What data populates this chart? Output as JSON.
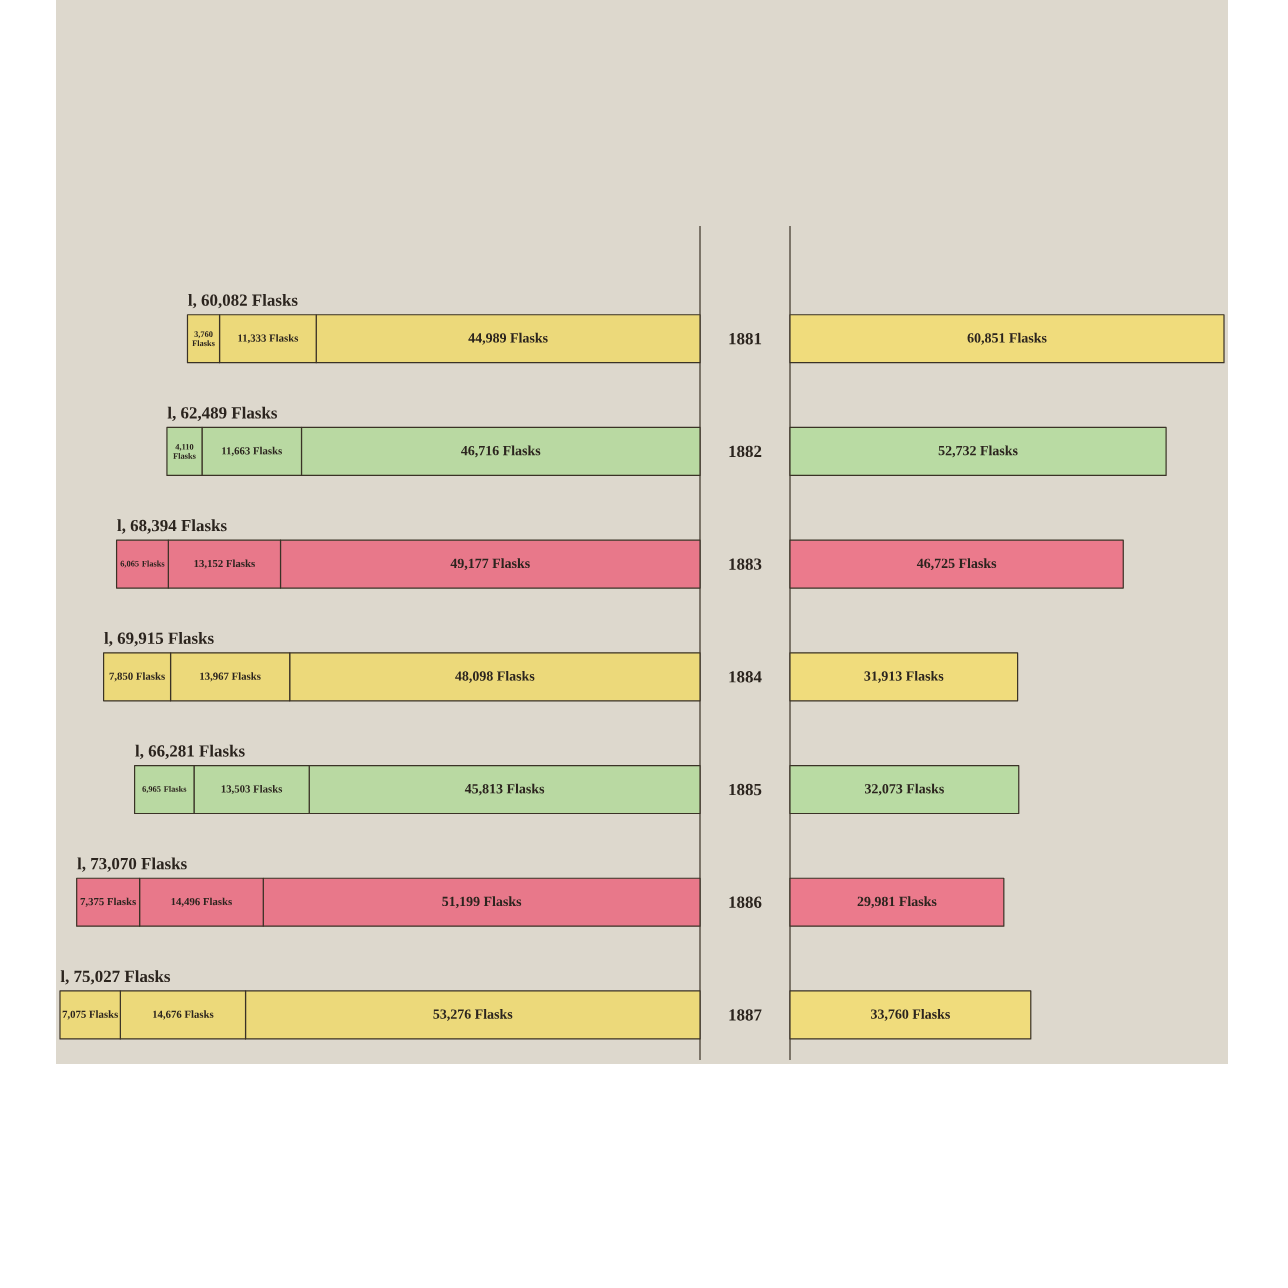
{
  "chart_data": [
    {
      "type": "bar",
      "orientation": "horizontal",
      "stacked": true,
      "categories": [
        "1881",
        "1882",
        "1883",
        "1884",
        "1885",
        "1886",
        "1887"
      ],
      "tick_labels": false,
      "xlim": [
        75027,
        0
      ],
      "series": [
        {
          "colors": [
            "#ecd97a",
            "#b9d9a2",
            "#e8788a",
            "#ecd97a",
            "#b9d9a2",
            "#e8788a",
            "#ecd97a"
          ],
          "values": [
            44989,
            46716,
            49177,
            48098,
            45813,
            51199,
            53276
          ],
          "value_labels": [
            "44,989 Flasks",
            "46,716 Flasks",
            "49,177 Flasks",
            "48,098 Flasks",
            "45,813 Flasks",
            "51,199 Flasks",
            "53,276 Flasks"
          ]
        },
        {
          "colors": [
            "#ecd97a",
            "#b9d9a2",
            "#e8788a",
            "#ecd97a",
            "#b9d9a2",
            "#e8788a",
            "#ecd97a"
          ],
          "values": [
            11333,
            11663,
            13152,
            13967,
            13503,
            14496,
            14676
          ],
          "value_labels": [
            "11,333 Flasks",
            "11,663 Flasks",
            "13,152 Flasks",
            "13,967 Flasks",
            "13,503 Flasks",
            "14,496 Flasks",
            "14,676 Flasks"
          ]
        },
        {
          "colors": [
            "#ecd97a",
            "#b9d9a2",
            "#e8788a",
            "#ecd97a",
            "#b9d9a2",
            "#e8788a",
            "#ecd97a"
          ],
          "values": [
            3760,
            4110,
            6065,
            7850,
            6965,
            7375,
            7075
          ],
          "value_labels": [
            "3,760 Flasks",
            "4,110 Flasks",
            "6,065 Flasks",
            "7,850 Flasks",
            "6,965 Flasks",
            "7,375 Flasks",
            "7,075 Flasks"
          ]
        }
      ],
      "totals": [
        "l, 60,082 Flasks",
        "l, 62,489 Flasks",
        "l, 68,394 Flasks",
        "l, 69,915 Flasks",
        "l, 66,281 Flasks",
        "l, 73,070 Flasks",
        "l, 75,027 Flasks"
      ]
    },
    {
      "type": "bar",
      "orientation": "horizontal",
      "categories": [
        "1881",
        "1882",
        "1883",
        "1884",
        "1885",
        "1886",
        "1887"
      ],
      "tick_labels": "y",
      "values": [
        60851,
        52732,
        46725,
        31913,
        32073,
        29981,
        33760
      ],
      "colors": [
        "#f0dc7c",
        "#b9dba3",
        "#eb7a8c",
        "#f0dc7c",
        "#b9dba3",
        "#eb7a8c",
        "#f0dc7c"
      ],
      "value_labels": [
        "60,851 Flasks",
        "52,732 Flasks",
        "46,725 Flasks",
        "31,913 Flasks",
        "32,073 Flasks",
        "29,981 Flasks",
        "33,760 Flasks"
      ]
    }
  ]
}
